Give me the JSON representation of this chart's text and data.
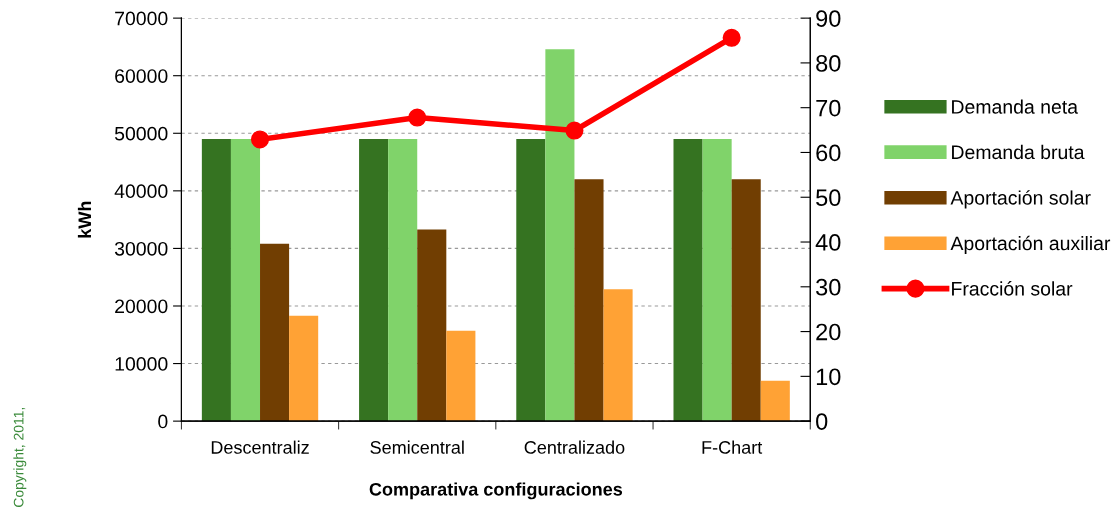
{
  "chart_data": {
    "type": "bar",
    "xlabel": "Comparativa configuraciones",
    "ylabel": "kWh",
    "categories": [
      "Descentraliz",
      "Semicentral",
      "Centralizado",
      "F-Chart"
    ],
    "series": [
      {
        "name": "Demanda neta",
        "color": "#357321",
        "values": [
          49000,
          49000,
          49000,
          49000
        ]
      },
      {
        "name": "Demanda bruta",
        "color": "#80d36a",
        "values": [
          49000,
          49000,
          64600,
          49000
        ]
      },
      {
        "name": "Aportación solar",
        "color": "#713e02",
        "values": [
          30800,
          33300,
          42000,
          42000
        ]
      },
      {
        "name": "Aportación auxiliar",
        "color": "#ffa235",
        "values": [
          18300,
          15700,
          22900,
          7000
        ]
      },
      {
        "name": "Fracción solar",
        "color": "#ff0000",
        "type": "line",
        "axis": "y2",
        "marker": "circle",
        "values": [
          62.9,
          67.8,
          64.9,
          85.6
        ]
      }
    ],
    "ylim": [
      0,
      70000
    ],
    "yticks": [
      0,
      10000,
      20000,
      30000,
      40000,
      50000,
      60000,
      70000
    ],
    "y2lim": [
      0,
      90
    ],
    "y2ticks": [
      0,
      10,
      20,
      30,
      40,
      50,
      60,
      70,
      80,
      90
    ],
    "grid": "y",
    "legend": "right",
    "annotations": [
      "Copyright, 2011,"
    ]
  }
}
